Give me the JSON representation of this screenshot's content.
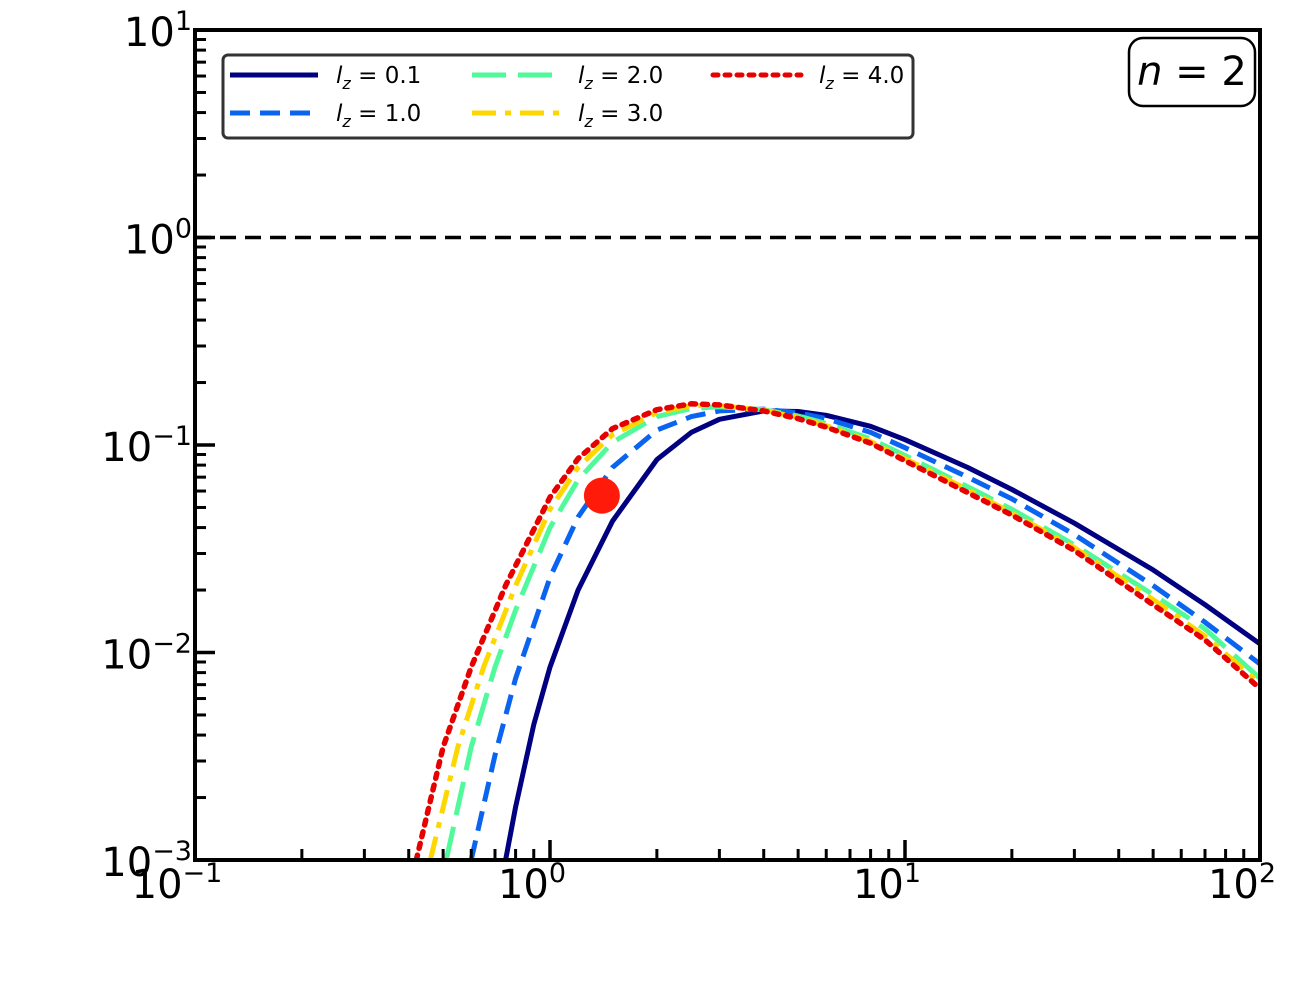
{
  "chart_data": {
    "type": "line",
    "title": "",
    "xlabel": "",
    "ylabel": "",
    "xscale": "log",
    "yscale": "log",
    "xlim": [
      0.1,
      100
    ],
    "ylim": [
      0.001,
      10
    ],
    "grid": false,
    "legend": {
      "placement": "upper-left",
      "columns": 3,
      "var_main": "l",
      "var_sub": "z"
    },
    "panel_label": {
      "main": "n",
      "rest": "= 2",
      "placement": "top-right"
    },
    "x_ticks": [
      {
        "base": "10",
        "exp": "−1",
        "value": 0.1
      },
      {
        "base": "10",
        "exp": "0",
        "value": 1
      },
      {
        "base": "10",
        "exp": "1",
        "value": 10
      },
      {
        "base": "10",
        "exp": "2",
        "value": 100
      }
    ],
    "y_ticks": [
      {
        "base": "10",
        "exp": "−3",
        "value": 0.001
      },
      {
        "base": "10",
        "exp": "−2",
        "value": 0.01
      },
      {
        "base": "10",
        "exp": "−1",
        "value": 0.1
      },
      {
        "base": "10",
        "exp": "0",
        "value": 1
      },
      {
        "base": "10",
        "exp": "1",
        "value": 10
      }
    ],
    "reference_lines": [
      {
        "orientation": "horizontal",
        "y": 1.0,
        "color": "#000000",
        "style": "dashed"
      }
    ],
    "highlight_points": [
      {
        "x": 1.4,
        "y": 0.057,
        "color": "#ff1a0a"
      }
    ],
    "series": [
      {
        "name": "= 0.1",
        "color": "#000080",
        "style": "solid",
        "x": [
          0.75,
          0.8,
          0.9,
          1.0,
          1.2,
          1.5,
          2.0,
          2.5,
          3.0,
          4.0,
          5.0,
          6.0,
          8.0,
          10,
          15,
          20,
          30,
          50,
          70,
          100
        ],
        "y": [
          0.001,
          0.0018,
          0.0045,
          0.0085,
          0.02,
          0.043,
          0.085,
          0.115,
          0.133,
          0.146,
          0.145,
          0.139,
          0.123,
          0.106,
          0.078,
          0.061,
          0.042,
          0.025,
          0.017,
          0.011
        ]
      },
      {
        "name": "= 1.0",
        "color": "#0a64f0",
        "style": "dashed",
        "x": [
          0.6,
          0.7,
          0.8,
          1.0,
          1.2,
          1.5,
          2.0,
          2.5,
          3.0,
          4.0,
          5.0,
          6.0,
          8.0,
          10,
          15,
          20,
          30,
          50,
          70,
          100
        ],
        "y": [
          0.001,
          0.0032,
          0.0075,
          0.023,
          0.045,
          0.078,
          0.118,
          0.137,
          0.146,
          0.149,
          0.143,
          0.134,
          0.115,
          0.097,
          0.07,
          0.055,
          0.037,
          0.021,
          0.014,
          0.0088
        ]
      },
      {
        "name": "= 2.0",
        "color": "#50fa9b",
        "style": "longdash",
        "x": [
          0.51,
          0.6,
          0.7,
          0.8,
          1.0,
          1.2,
          1.5,
          2.0,
          2.5,
          3.0,
          4.0,
          5.0,
          6.0,
          8.0,
          10,
          15,
          20,
          30,
          50,
          70,
          100
        ],
        "y": [
          0.001,
          0.0035,
          0.0085,
          0.016,
          0.04,
          0.068,
          0.103,
          0.137,
          0.15,
          0.153,
          0.148,
          0.138,
          0.127,
          0.107,
          0.089,
          0.063,
          0.049,
          0.033,
          0.019,
          0.013,
          0.0075
        ]
      },
      {
        "name": "= 3.0",
        "color": "#ffd700",
        "style": "dashdot",
        "x": [
          0.46,
          0.55,
          0.65,
          0.8,
          1.0,
          1.2,
          1.5,
          2.0,
          2.5,
          3.0,
          4.0,
          5.0,
          6.0,
          8.0,
          10,
          15,
          20,
          30,
          50,
          70,
          100
        ],
        "y": [
          0.001,
          0.0035,
          0.0085,
          0.021,
          0.049,
          0.078,
          0.112,
          0.143,
          0.155,
          0.155,
          0.147,
          0.136,
          0.124,
          0.104,
          0.086,
          0.061,
          0.047,
          0.032,
          0.018,
          0.012,
          0.0071
        ]
      },
      {
        "name": "= 4.0",
        "color": "#e60000",
        "style": "dotted",
        "x": [
          0.42,
          0.5,
          0.6,
          0.75,
          1.0,
          1.2,
          1.5,
          2.0,
          2.5,
          3.0,
          4.0,
          5.0,
          6.0,
          8.0,
          10,
          15,
          20,
          30,
          50,
          70,
          100
        ],
        "y": [
          0.001,
          0.0035,
          0.0085,
          0.021,
          0.056,
          0.086,
          0.12,
          0.148,
          0.158,
          0.156,
          0.146,
          0.134,
          0.122,
          0.102,
          0.084,
          0.059,
          0.046,
          0.031,
          0.017,
          0.0115,
          0.0067
        ]
      }
    ]
  }
}
